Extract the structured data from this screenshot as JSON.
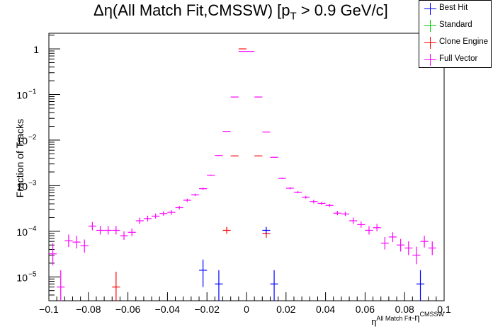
{
  "page_title_parts": {
    "main": "Δη(All Match Fit,CMSSW) [p",
    "sub": "T",
    "tail": " > 0.9 GeV/c]"
  },
  "legend": {
    "items": [
      {
        "label": "Best Hit",
        "color": "#0000ff"
      },
      {
        "label": "Standard",
        "color": "#00cc00"
      },
      {
        "label": "Clone Engine",
        "color": "#ff0000"
      },
      {
        "label": "Full Vector",
        "color": "#ff00ff"
      }
    ]
  },
  "chart_data": {
    "type": "scatter",
    "title": "Δη(All Match Fit,CMSSW) [pT > 0.9 GeV/c]",
    "ylabel": "Fraction of Tracks",
    "xlabel": "η^{All Match Fit}-η^{CMSSW}",
    "xlabel_parts": {
      "base": "η",
      "sup1": "All Match Fit",
      "mid": "-η",
      "sup2": "CMSSW"
    },
    "xlim": [
      -0.1,
      0.1
    ],
    "ylim": [
      3e-06,
      2.2
    ],
    "yscale": "log",
    "xticks": [
      {
        "value": -0.1,
        "label": "−0.1"
      },
      {
        "value": -0.08,
        "label": "−0.08"
      },
      {
        "value": -0.06,
        "label": "−0.06"
      },
      {
        "value": -0.04,
        "label": "−0.04"
      },
      {
        "value": -0.02,
        "label": "−0.02"
      },
      {
        "value": 0,
        "label": "0"
      },
      {
        "value": 0.02,
        "label": "0.02"
      },
      {
        "value": 0.04,
        "label": "0.04"
      },
      {
        "value": 0.06,
        "label": "0.06"
      },
      {
        "value": 0.08,
        "label": "0.08"
      },
      {
        "value": 0.1,
        "label": "0.1"
      }
    ],
    "yticks": [
      {
        "value": 1,
        "label": "1",
        "exp": ""
      },
      {
        "value": 0.1,
        "label": "10",
        "exp": "−1"
      },
      {
        "value": 0.01,
        "label": "10",
        "exp": "−2"
      },
      {
        "value": 0.001,
        "label": "10",
        "exp": "−3"
      },
      {
        "value": 0.0001,
        "label": "10",
        "exp": "−4"
      },
      {
        "value": 1e-05,
        "label": "10",
        "exp": "−5"
      }
    ],
    "bin_width": 0.004,
    "legend_position": "top-right",
    "series": [
      {
        "name": "Full Vector",
        "color": "#ff00ff",
        "points": [
          [
            -0.098,
            3.2e-05,
            1.8e-05,
            5.5e-05
          ],
          [
            -0.094,
            6e-06,
            2e-06,
            1.4e-05
          ],
          [
            -0.09,
            6.2e-05,
            4.5e-05,
            8.5e-05
          ],
          [
            -0.086,
            5.8e-05,
            4.2e-05,
            8e-05
          ],
          [
            -0.082,
            4.8e-05,
            3.4e-05,
            6.6e-05
          ],
          [
            -0.078,
            0.00013,
            0.000105,
            0.00016
          ],
          [
            -0.074,
            0.000105,
            8.5e-05,
            0.00013
          ],
          [
            -0.07,
            0.000105,
            8.5e-05,
            0.00013
          ],
          [
            -0.066,
            0.000105,
            8.5e-05,
            0.00013
          ],
          [
            -0.062,
            8e-05,
            6.5e-05,
            0.0001
          ],
          [
            -0.058,
            9.5e-05,
            7.8e-05,
            0.000115
          ],
          [
            -0.054,
            0.00017,
            0.000145,
            0.0002
          ],
          [
            -0.05,
            0.00019,
            0.000165,
            0.00022
          ],
          [
            -0.046,
            0.000215,
            0.00019,
            0.000245
          ],
          [
            -0.042,
            0.000245,
            0.00022,
            0.000275
          ],
          [
            -0.038,
            0.00026,
            0.00023,
            0.00029
          ],
          [
            -0.034,
            0.00033,
            0.0003,
            0.00036
          ],
          [
            -0.03,
            0.00048,
            0.00044,
            0.00052
          ],
          [
            -0.026,
            0.00063,
            0.00059,
            0.00067
          ],
          [
            -0.022,
            0.00086,
            0.00081,
            0.00091
          ],
          [
            -0.018,
            0.0017,
            0.00165,
            0.00175
          ],
          [
            -0.014,
            0.0046,
            0.0045,
            0.0047
          ],
          [
            -0.01,
            0.0155,
            0.0154,
            0.0156
          ],
          [
            -0.006,
            0.088,
            0.0875,
            0.0885
          ],
          [
            -0.002,
            0.88,
            0.878,
            0.882
          ],
          [
            0.002,
            0.88,
            0.878,
            0.882
          ],
          [
            0.006,
            0.088,
            0.0875,
            0.0885
          ],
          [
            0.01,
            0.015,
            0.0149,
            0.0151
          ],
          [
            0.014,
            0.0042,
            0.0041,
            0.0043
          ],
          [
            0.018,
            0.00145,
            0.0014,
            0.0015
          ],
          [
            0.022,
            0.00088,
            0.00083,
            0.00093
          ],
          [
            0.026,
            0.00072,
            0.00068,
            0.00076
          ],
          [
            0.03,
            0.00056,
            0.00052,
            0.0006
          ],
          [
            0.034,
            0.00045,
            0.00041,
            0.00049
          ],
          [
            0.038,
            0.00041,
            0.00038,
            0.00044
          ],
          [
            0.042,
            0.00037,
            0.00034,
            0.0004
          ],
          [
            0.046,
            0.00025,
            0.000225,
            0.00028
          ],
          [
            0.05,
            0.00024,
            0.000215,
            0.00027
          ],
          [
            0.054,
            0.00017,
            0.000145,
            0.0002
          ],
          [
            0.058,
            0.00014,
            0.00012,
            0.000165
          ],
          [
            0.062,
            0.000105,
            8.5e-05,
            0.00013
          ],
          [
            0.066,
            0.00012,
            0.0001,
            0.000145
          ],
          [
            0.07,
            5.5e-05,
            4e-05,
            7.5e-05
          ],
          [
            0.074,
            7.5e-05,
            5.8e-05,
            9.5e-05
          ],
          [
            0.078,
            5e-05,
            3.6e-05,
            6.8e-05
          ],
          [
            0.082,
            4.3e-05,
            3e-05,
            6e-05
          ],
          [
            0.086,
            3e-05,
            1.9e-05,
            4.6e-05
          ],
          [
            0.09,
            6e-05,
            4.4e-05,
            8e-05
          ],
          [
            0.094,
            4.3e-05,
            3e-05,
            6e-05
          ]
        ]
      },
      {
        "name": "Clone Engine",
        "color": "#ff0000",
        "points": [
          [
            -0.066,
            6e-06,
            2.5e-06,
            1.3e-05
          ],
          [
            -0.01,
            0.000105,
            8.8e-05,
            0.000125
          ],
          [
            -0.006,
            0.0045,
            0.0044,
            0.0046
          ],
          [
            -0.002,
            1.0,
            0.998,
            1.002
          ],
          [
            0.006,
            0.0045,
            0.0044,
            0.0046
          ],
          [
            0.01,
            9e-05,
            7.2e-05,
            0.00011
          ]
        ]
      },
      {
        "name": "Best Hit",
        "color": "#0000ff",
        "points": [
          [
            -0.022,
            1.4e-05,
            6e-06,
            2.4e-05
          ],
          [
            -0.014,
            7e-06,
            3e-06,
            1.4e-05
          ],
          [
            0.01,
            0.000105,
            8.8e-05,
            0.000125
          ],
          [
            0.014,
            7e-06,
            3e-06,
            1.4e-05
          ],
          [
            0.088,
            7e-06,
            3e-06,
            1.4e-05
          ]
        ]
      }
    ]
  }
}
